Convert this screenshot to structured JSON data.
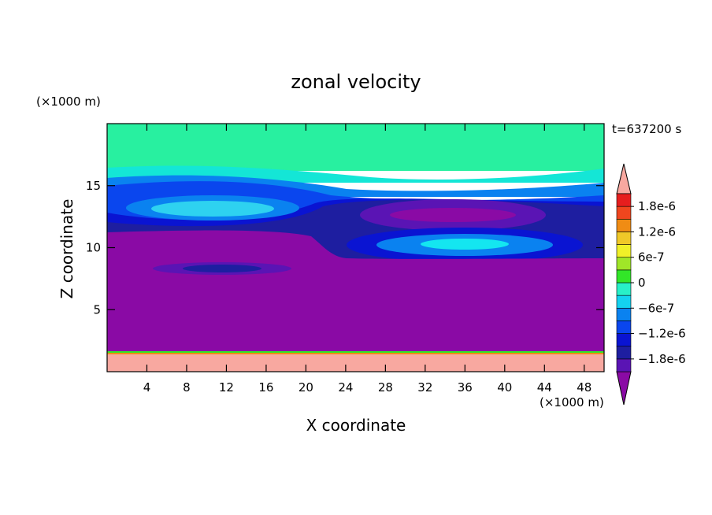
{
  "chart_data": {
    "type": "heatmap",
    "title": "zonal velocity",
    "xlabel": "X coordinate",
    "ylabel": "Z coordinate",
    "x_unit": "(×1000 m)",
    "y_unit": "(×1000 m)",
    "time_label": "t=637200 s",
    "xlim": [
      0,
      50
    ],
    "ylim": [
      0,
      20
    ],
    "x_ticks": [
      4,
      8,
      12,
      16,
      20,
      24,
      28,
      32,
      36,
      40,
      44,
      48
    ],
    "y_ticks": [
      5,
      10,
      15
    ],
    "x_tick_labels": [
      "4",
      "8",
      "12",
      "16",
      "20",
      "24",
      "28",
      "32",
      "36",
      "40",
      "44",
      "48"
    ],
    "y_tick_labels": [
      "5",
      "10",
      "15"
    ],
    "colorbar": {
      "levels": [
        -2.1e-06,
        -1.8e-06,
        -1.5e-06,
        -1.2e-06,
        -9e-07,
        -6e-07,
        -3e-07,
        0,
        3e-07,
        6e-07,
        9e-07,
        1.2e-06,
        1.5e-06,
        1.8e-06,
        2.1e-06
      ],
      "colors": [
        "#8a0aa5",
        "#5a14b4",
        "#1e1ea0",
        "#0a14d2",
        "#0a46ee",
        "#0a82f0",
        "#14d2f0",
        "#28f0c8",
        "#32e628",
        "#a0e628",
        "#f0f028",
        "#f0c828",
        "#f08c14",
        "#f0461e",
        "#e61e1e",
        "#f8a8a0"
      ],
      "labels": [
        "1.8e-6",
        "1.2e-6",
        "6e-7",
        "0",
        "−6e-7",
        "−1.2e-6",
        "−1.8e-6"
      ],
      "label_values": [
        1.8e-06,
        1.2e-06,
        6e-07,
        0,
        -6e-07,
        -1.2e-06,
        -1.8e-06
      ]
    },
    "grid": false
  }
}
